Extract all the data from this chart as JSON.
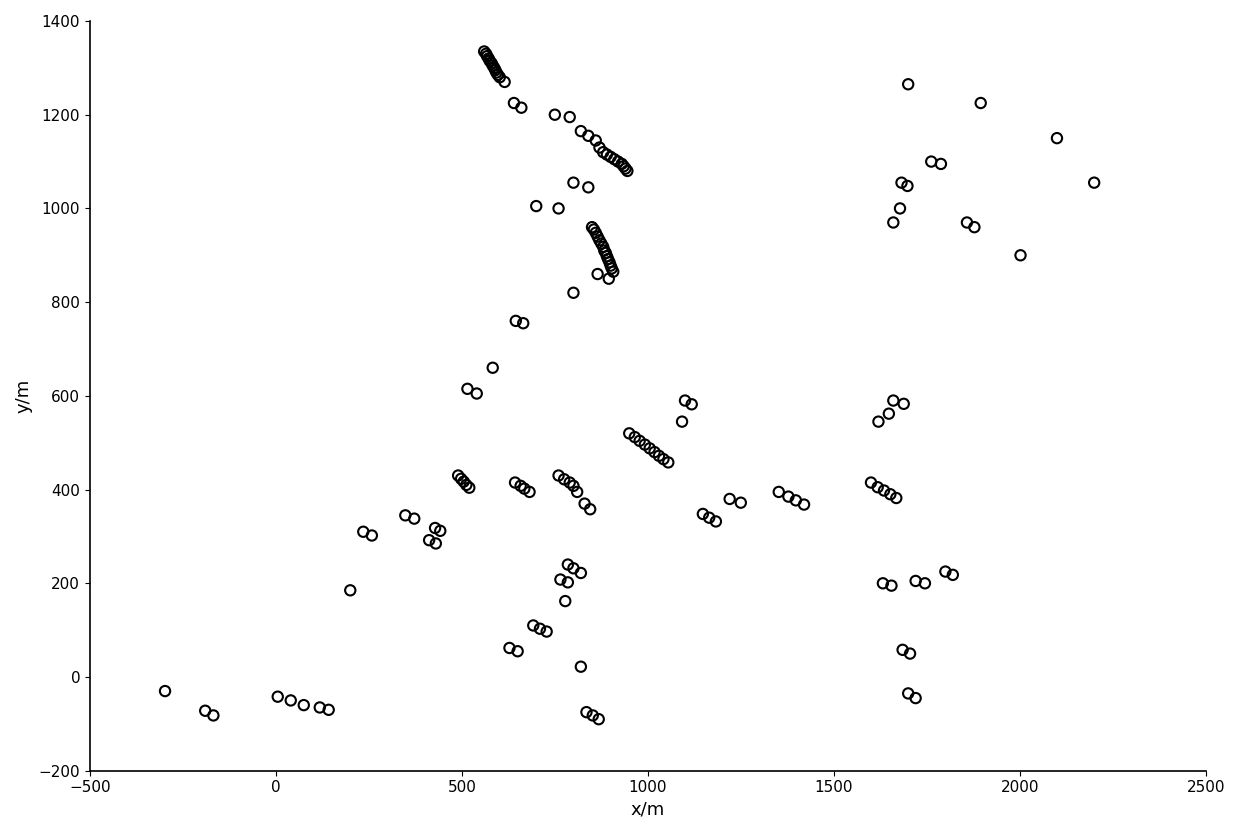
{
  "points": [
    [
      560,
      1335
    ],
    [
      565,
      1330
    ],
    [
      568,
      1325
    ],
    [
      572,
      1320
    ],
    [
      575,
      1315
    ],
    [
      580,
      1310
    ],
    [
      583,
      1305
    ],
    [
      587,
      1300
    ],
    [
      590,
      1295
    ],
    [
      593,
      1290
    ],
    [
      597,
      1285
    ],
    [
      602,
      1280
    ],
    [
      615,
      1270
    ],
    [
      640,
      1225
    ],
    [
      660,
      1215
    ],
    [
      750,
      1200
    ],
    [
      790,
      1195
    ],
    [
      820,
      1165
    ],
    [
      840,
      1155
    ],
    [
      860,
      1145
    ],
    [
      870,
      1130
    ],
    [
      880,
      1120
    ],
    [
      890,
      1115
    ],
    [
      900,
      1110
    ],
    [
      910,
      1105
    ],
    [
      920,
      1100
    ],
    [
      930,
      1095
    ],
    [
      935,
      1090
    ],
    [
      940,
      1085
    ],
    [
      945,
      1080
    ],
    [
      800,
      1055
    ],
    [
      840,
      1045
    ],
    [
      700,
      1005
    ],
    [
      760,
      1000
    ],
    [
      850,
      960
    ],
    [
      855,
      955
    ],
    [
      860,
      948
    ],
    [
      865,
      940
    ],
    [
      870,
      932
    ],
    [
      875,
      925
    ],
    [
      880,
      918
    ],
    [
      883,
      910
    ],
    [
      887,
      905
    ],
    [
      890,
      898
    ],
    [
      893,
      892
    ],
    [
      897,
      885
    ],
    [
      900,
      878
    ],
    [
      903,
      872
    ],
    [
      907,
      865
    ],
    [
      865,
      860
    ],
    [
      895,
      850
    ],
    [
      800,
      820
    ],
    [
      645,
      760
    ],
    [
      665,
      755
    ],
    [
      583,
      660
    ],
    [
      515,
      615
    ],
    [
      540,
      605
    ],
    [
      490,
      430
    ],
    [
      498,
      423
    ],
    [
      505,
      417
    ],
    [
      512,
      410
    ],
    [
      520,
      404
    ],
    [
      643,
      415
    ],
    [
      658,
      408
    ],
    [
      668,
      402
    ],
    [
      682,
      395
    ],
    [
      760,
      430
    ],
    [
      775,
      422
    ],
    [
      790,
      415
    ],
    [
      800,
      408
    ],
    [
      810,
      395
    ],
    [
      830,
      370
    ],
    [
      845,
      358
    ],
    [
      785,
      240
    ],
    [
      800,
      232
    ],
    [
      820,
      222
    ],
    [
      765,
      208
    ],
    [
      785,
      202
    ],
    [
      778,
      162
    ],
    [
      692,
      110
    ],
    [
      710,
      103
    ],
    [
      728,
      97
    ],
    [
      628,
      62
    ],
    [
      650,
      55
    ],
    [
      820,
      22
    ],
    [
      835,
      -75
    ],
    [
      852,
      -82
    ],
    [
      868,
      -90
    ],
    [
      950,
      520
    ],
    [
      965,
      512
    ],
    [
      978,
      504
    ],
    [
      992,
      496
    ],
    [
      1005,
      488
    ],
    [
      1018,
      480
    ],
    [
      1030,
      472
    ],
    [
      1042,
      465
    ],
    [
      1055,
      458
    ],
    [
      1092,
      545
    ],
    [
      1100,
      590
    ],
    [
      1118,
      582
    ],
    [
      1148,
      348
    ],
    [
      1165,
      340
    ],
    [
      1183,
      332
    ],
    [
      1220,
      380
    ],
    [
      1250,
      372
    ],
    [
      1352,
      395
    ],
    [
      1378,
      385
    ],
    [
      1398,
      377
    ],
    [
      1420,
      368
    ],
    [
      1600,
      415
    ],
    [
      1618,
      405
    ],
    [
      1635,
      398
    ],
    [
      1652,
      390
    ],
    [
      1668,
      382
    ],
    [
      1620,
      545
    ],
    [
      1648,
      562
    ],
    [
      1660,
      590
    ],
    [
      1688,
      583
    ],
    [
      1632,
      200
    ],
    [
      1655,
      195
    ],
    [
      1720,
      205
    ],
    [
      1745,
      200
    ],
    [
      1800,
      225
    ],
    [
      1820,
      218
    ],
    [
      1700,
      -35
    ],
    [
      1720,
      -45
    ],
    [
      1685,
      58
    ],
    [
      1705,
      50
    ],
    [
      1660,
      970
    ],
    [
      1678,
      1000
    ],
    [
      1682,
      1055
    ],
    [
      1698,
      1048
    ],
    [
      1762,
      1100
    ],
    [
      1788,
      1095
    ],
    [
      1858,
      970
    ],
    [
      1878,
      960
    ],
    [
      2002,
      900
    ],
    [
      2200,
      1055
    ],
    [
      1700,
      1265
    ],
    [
      1895,
      1225
    ],
    [
      2100,
      1150
    ],
    [
      -298,
      -30
    ],
    [
      -190,
      -72
    ],
    [
      -168,
      -82
    ],
    [
      5,
      -42
    ],
    [
      40,
      -50
    ],
    [
      75,
      -60
    ],
    [
      118,
      -65
    ],
    [
      142,
      -70
    ],
    [
      235,
      310
    ],
    [
      258,
      302
    ],
    [
      348,
      345
    ],
    [
      372,
      338
    ],
    [
      428,
      318
    ],
    [
      442,
      312
    ],
    [
      412,
      292
    ],
    [
      430,
      285
    ],
    [
      200,
      185
    ]
  ],
  "xlabel": "x/m",
  "ylabel": "y/m",
  "xlim": [
    -500,
    2500
  ],
  "ylim": [
    -200,
    1400
  ],
  "xticks": [
    -500,
    0,
    500,
    1000,
    1500,
    2000,
    2500
  ],
  "yticks": [
    -200,
    0,
    200,
    400,
    600,
    800,
    1000,
    1200,
    1400
  ],
  "figsize": [
    12.4,
    8.34
  ],
  "dpi": 100
}
